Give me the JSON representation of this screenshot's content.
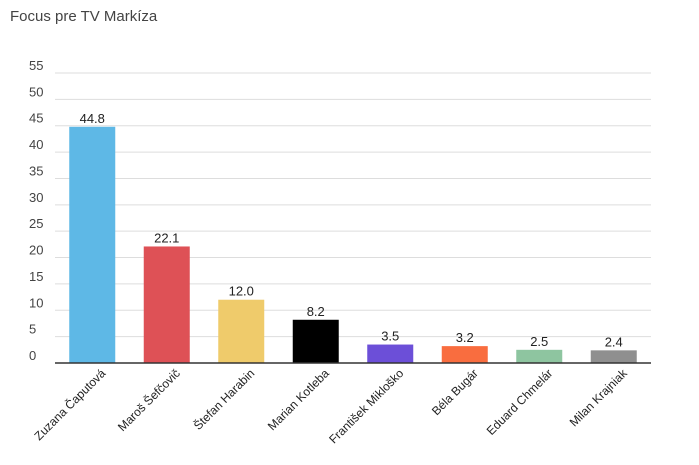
{
  "title": "Focus pre TV Markíza",
  "chart_data": {
    "type": "bar",
    "title": "Focus pre TV Markíza",
    "xlabel": "",
    "ylabel": "",
    "ylim": [
      0,
      55
    ],
    "yticks": [
      0,
      5,
      10,
      15,
      20,
      25,
      30,
      35,
      40,
      45,
      50,
      55
    ],
    "grid": true,
    "categories": [
      "Zuzana Čaputová",
      "Maroš Šefčovič",
      "Štefan Harabin",
      "Marian Kotleba",
      "František Mikloško",
      "Béla Bugár",
      "Eduard Chmelár",
      "Milan Krajniak"
    ],
    "values": [
      44.8,
      22.1,
      12.0,
      8.2,
      3.5,
      3.2,
      2.5,
      2.4
    ],
    "value_labels": [
      "44.8",
      "22.1",
      "12.0",
      "8.2",
      "3.5",
      "3.2",
      "2.5",
      "2.4"
    ],
    "colors": [
      "#5eb8e6",
      "#de5156",
      "#efcb6b",
      "#000000",
      "#6c4fd8",
      "#f96d3f",
      "#8ec5a0",
      "#8f8f8f"
    ]
  }
}
